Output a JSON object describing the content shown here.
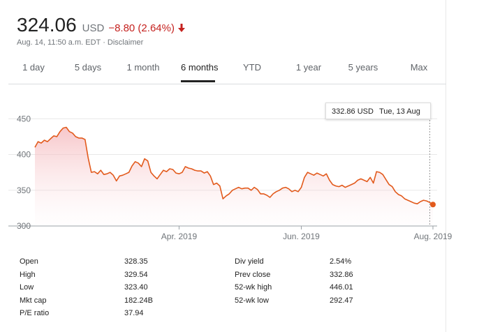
{
  "quote": {
    "price": "324.06",
    "currency": "USD",
    "change": "−8.80 (2.64%)",
    "change_direction": "down",
    "timestamp": "Aug. 14, 11:50 a.m. EDT",
    "separator": "·",
    "disclaimer": "Disclaimer",
    "down_color": "#c5221f"
  },
  "tabs": [
    {
      "label": "1 day"
    },
    {
      "label": "5 days"
    },
    {
      "label": "1 month"
    },
    {
      "label": "6 months",
      "active": true
    },
    {
      "label": "YTD"
    },
    {
      "label": "1 year"
    },
    {
      "label": "5 years"
    },
    {
      "label": "Max"
    }
  ],
  "tooltip": {
    "price": "332.86 USD",
    "date": "Tue, 13 Aug"
  },
  "chart_data": {
    "type": "area",
    "title": "",
    "xlabel": "",
    "ylabel": "",
    "ylim": [
      300,
      460
    ],
    "y_ticks": [
      300,
      350,
      400,
      450
    ],
    "y_tick_labels": [
      "300",
      "350",
      "400",
      "450"
    ],
    "x_ticks": [
      {
        "label": "Apr. 2019",
        "index": 46
      },
      {
        "label": "Jun. 2019",
        "index": 85
      },
      {
        "label": "Aug. 2019",
        "index": 127
      }
    ],
    "line_color": "#e25a1c",
    "fill_color": "#f4b4b8",
    "grid": true,
    "series": [
      {
        "values": [
          410,
          418,
          416,
          420,
          418,
          422,
          426,
          425,
          432,
          437,
          438,
          432,
          430,
          425,
          423,
          423,
          421,
          395,
          375,
          376,
          373,
          378,
          372,
          373,
          375,
          371,
          363,
          370,
          371,
          373,
          375,
          384,
          390,
          388,
          383,
          394,
          391,
          375,
          370,
          366,
          372,
          378,
          376,
          380,
          379,
          374,
          373,
          375,
          383,
          381,
          380,
          378,
          377,
          377,
          374,
          376,
          370,
          358,
          360,
          356,
          338,
          342,
          345,
          350,
          352,
          354,
          352,
          353,
          353,
          350,
          354,
          351,
          345,
          345,
          343,
          340,
          345,
          348,
          350,
          353,
          354,
          352,
          348,
          350,
          348,
          354,
          368,
          375,
          373,
          371,
          374,
          372,
          370,
          373,
          364,
          358,
          356,
          355,
          357,
          354,
          356,
          358,
          360,
          364,
          366,
          364,
          362,
          368,
          360,
          376,
          375,
          372,
          365,
          358,
          355,
          348,
          344,
          342,
          338,
          336,
          334,
          332,
          331,
          334,
          336,
          335,
          332.86,
          330
        ]
      }
    ],
    "last_point": 330
  },
  "stats": {
    "left": [
      {
        "label": "Open",
        "value": "328.35"
      },
      {
        "label": "High",
        "value": "329.54"
      },
      {
        "label": "Low",
        "value": "323.40"
      },
      {
        "label": "Mkt cap",
        "value": "182.24B"
      },
      {
        "label": "P/E ratio",
        "value": "37.94"
      }
    ],
    "right": [
      {
        "label": "Div yield",
        "value": "2.54%"
      },
      {
        "label": "Prev close",
        "value": "332.86"
      },
      {
        "label": "52-wk high",
        "value": "446.01"
      },
      {
        "label": "52-wk low",
        "value": "292.47"
      }
    ]
  }
}
